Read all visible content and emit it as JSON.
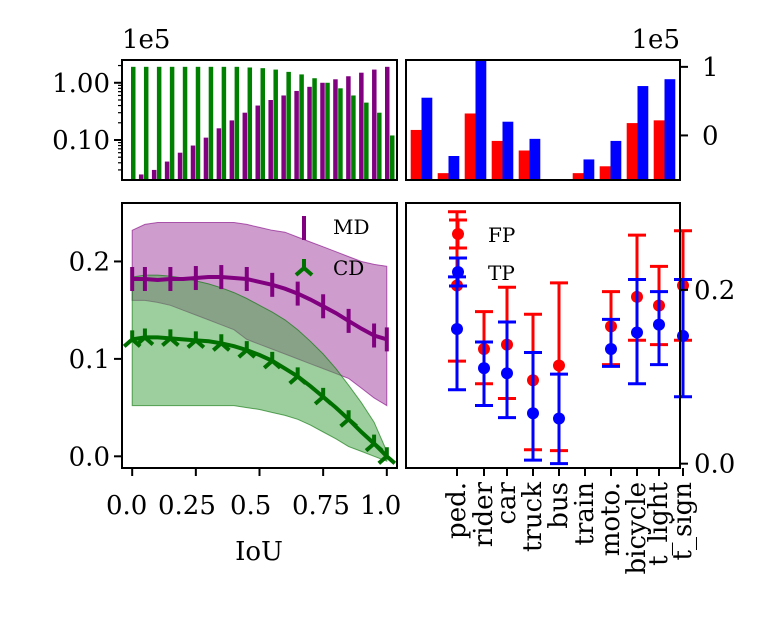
{
  "chart_data": [
    {
      "id": "top-left",
      "type": "bar",
      "scale": "log",
      "offset_text": "1e5",
      "ylim": [
        0.02,
        2.5
      ],
      "yticks": [
        {
          "v": 0.1,
          "label": "0.10"
        },
        {
          "v": 1.0,
          "label": "1.00"
        }
      ],
      "x": [
        0.0,
        0.05,
        0.1,
        0.15,
        0.2,
        0.25,
        0.3,
        0.35,
        0.4,
        0.45,
        0.5,
        0.55,
        0.6,
        0.65,
        0.7,
        0.75,
        0.8,
        0.85,
        0.9,
        0.95,
        1.0
      ],
      "series": [
        {
          "name": "MD",
          "color": "#800080",
          "values": [
            0.018,
            0.025,
            0.03,
            0.042,
            0.06,
            0.08,
            0.11,
            0.16,
            0.22,
            0.3,
            0.4,
            0.5,
            0.6,
            0.72,
            0.85,
            1.0,
            1.15,
            1.3,
            1.5,
            1.7,
            1.9
          ]
        },
        {
          "name": "CD",
          "color": "#008000",
          "values": [
            1.9,
            1.9,
            1.9,
            1.9,
            1.9,
            1.9,
            1.9,
            1.9,
            1.9,
            1.85,
            1.8,
            1.7,
            1.55,
            1.4,
            1.2,
            1.0,
            0.8,
            0.6,
            0.45,
            0.3,
            0.12
          ]
        }
      ]
    },
    {
      "id": "top-right",
      "type": "bar",
      "offset_text": "1e5",
      "ylim": [
        -0.65,
        1.1
      ],
      "yticks": [
        {
          "v": 0,
          "label": "0"
        },
        {
          "v": 1,
          "label": "1"
        }
      ],
      "categories": [
        "ped.",
        "rider",
        "car",
        "truck",
        "bus",
        "train",
        "moto.",
        "bicycle",
        "t_light",
        "t_sign"
      ],
      "series": [
        {
          "name": "FP",
          "color": "#ff0000",
          "values": [
            0.08,
            -0.55,
            0.32,
            -0.08,
            -0.22,
            -0.65,
            -0.55,
            -0.45,
            0.18,
            0.22
          ]
        },
        {
          "name": "TP",
          "color": "#0000ff",
          "values": [
            0.55,
            -0.3,
            1.1,
            0.2,
            -0.05,
            -0.65,
            -0.35,
            -0.08,
            0.72,
            0.82
          ]
        }
      ]
    },
    {
      "id": "bottom-left",
      "type": "line",
      "xlabel": "IoU",
      "xlim": [
        -0.04,
        1.04
      ],
      "ylim": [
        -0.012,
        0.26
      ],
      "xticks": [
        {
          "v": 0.0,
          "label": "0.0"
        },
        {
          "v": 0.25,
          "label": "0.25"
        },
        {
          "v": 0.5,
          "label": "0.5"
        },
        {
          "v": 0.75,
          "label": "0.75"
        },
        {
          "v": 1.0,
          "label": "1.0"
        }
      ],
      "yticks": [
        {
          "v": 0.0,
          "label": "0.0"
        },
        {
          "v": 0.1,
          "label": "0.1"
        },
        {
          "v": 0.2,
          "label": "0.2"
        }
      ],
      "x": [
        0.0,
        0.05,
        0.1,
        0.15,
        0.2,
        0.25,
        0.3,
        0.35,
        0.4,
        0.45,
        0.5,
        0.55,
        0.6,
        0.65,
        0.7,
        0.75,
        0.8,
        0.85,
        0.9,
        0.95,
        1.0
      ],
      "series": [
        {
          "name": "MD",
          "marker": "|",
          "color": "#800080",
          "fill": "#a64ca6",
          "values": [
            0.182,
            0.182,
            0.181,
            0.182,
            0.182,
            0.183,
            0.184,
            0.184,
            0.183,
            0.182,
            0.179,
            0.176,
            0.172,
            0.167,
            0.161,
            0.154,
            0.147,
            0.139,
            0.131,
            0.124,
            0.12
          ],
          "upper": [
            0.232,
            0.238,
            0.24,
            0.24,
            0.24,
            0.24,
            0.24,
            0.24,
            0.24,
            0.238,
            0.235,
            0.232,
            0.23,
            0.225,
            0.22,
            0.215,
            0.21,
            0.205,
            0.2,
            0.197,
            0.195
          ],
          "lower": [
            0.16,
            0.16,
            0.158,
            0.155,
            0.15,
            0.145,
            0.14,
            0.135,
            0.13,
            0.12,
            0.115,
            0.11,
            0.105,
            0.1,
            0.095,
            0.09,
            0.085,
            0.08,
            0.07,
            0.06,
            0.052
          ]
        },
        {
          "name": "CD",
          "marker": "Y",
          "color": "#007000",
          "fill": "#4ca64c",
          "values": [
            0.12,
            0.122,
            0.122,
            0.121,
            0.12,
            0.119,
            0.118,
            0.116,
            0.113,
            0.109,
            0.104,
            0.098,
            0.09,
            0.082,
            0.072,
            0.061,
            0.05,
            0.038,
            0.025,
            0.013,
            0.0
          ],
          "upper": [
            0.184,
            0.186,
            0.186,
            0.185,
            0.183,
            0.18,
            0.177,
            0.173,
            0.168,
            0.162,
            0.155,
            0.148,
            0.14,
            0.13,
            0.118,
            0.105,
            0.09,
            0.073,
            0.055,
            0.035,
            0.005
          ],
          "lower": [
            0.052,
            0.052,
            0.052,
            0.052,
            0.052,
            0.052,
            0.052,
            0.052,
            0.052,
            0.05,
            0.048,
            0.045,
            0.042,
            0.038,
            0.032,
            0.025,
            0.018,
            0.01,
            0.005,
            0.0,
            -0.005
          ]
        }
      ],
      "legend": [
        {
          "label": "MD"
        },
        {
          "label": "CD"
        }
      ]
    },
    {
      "id": "bottom-right",
      "type": "scatter",
      "ylim": [
        -0.005,
        0.3
      ],
      "yticks": [
        {
          "v": 0.0,
          "label": "0.0"
        },
        {
          "v": 0.2,
          "label": "0.2"
        }
      ],
      "categories": [
        "ped.",
        "rider",
        "car",
        "truck",
        "bus",
        "train",
        "moto.",
        "bicycle",
        "t_light",
        "t_sign"
      ],
      "series": [
        {
          "name": "FP",
          "color": "#ff0000",
          "values": [
            0.205,
            0.132,
            0.137,
            0.096,
            0.113,
            null,
            0.158,
            0.192,
            0.182,
            0.205
          ],
          "err_low": [
            0.118,
            0.092,
            0.075,
            0.016,
            0.015,
            null,
            0.114,
            0.142,
            0.137,
            0.142
          ],
          "err_high": [
            0.29,
            0.175,
            0.203,
            0.172,
            0.208,
            null,
            0.198,
            0.263,
            0.227,
            0.268
          ]
        },
        {
          "name": "TP",
          "color": "#0000ff",
          "values": [
            0.155,
            0.11,
            0.104,
            0.058,
            0.052,
            null,
            0.132,
            0.151,
            0.16,
            0.147
          ],
          "err_low": [
            0.085,
            0.067,
            0.053,
            0.004,
            0.0,
            null,
            0.112,
            0.092,
            0.114,
            0.077
          ],
          "err_high": [
            0.215,
            0.14,
            0.163,
            0.128,
            0.103,
            null,
            0.166,
            0.212,
            0.198,
            0.212
          ]
        }
      ],
      "legend": [
        {
          "label": "FP"
        },
        {
          "label": "TP"
        }
      ]
    }
  ]
}
